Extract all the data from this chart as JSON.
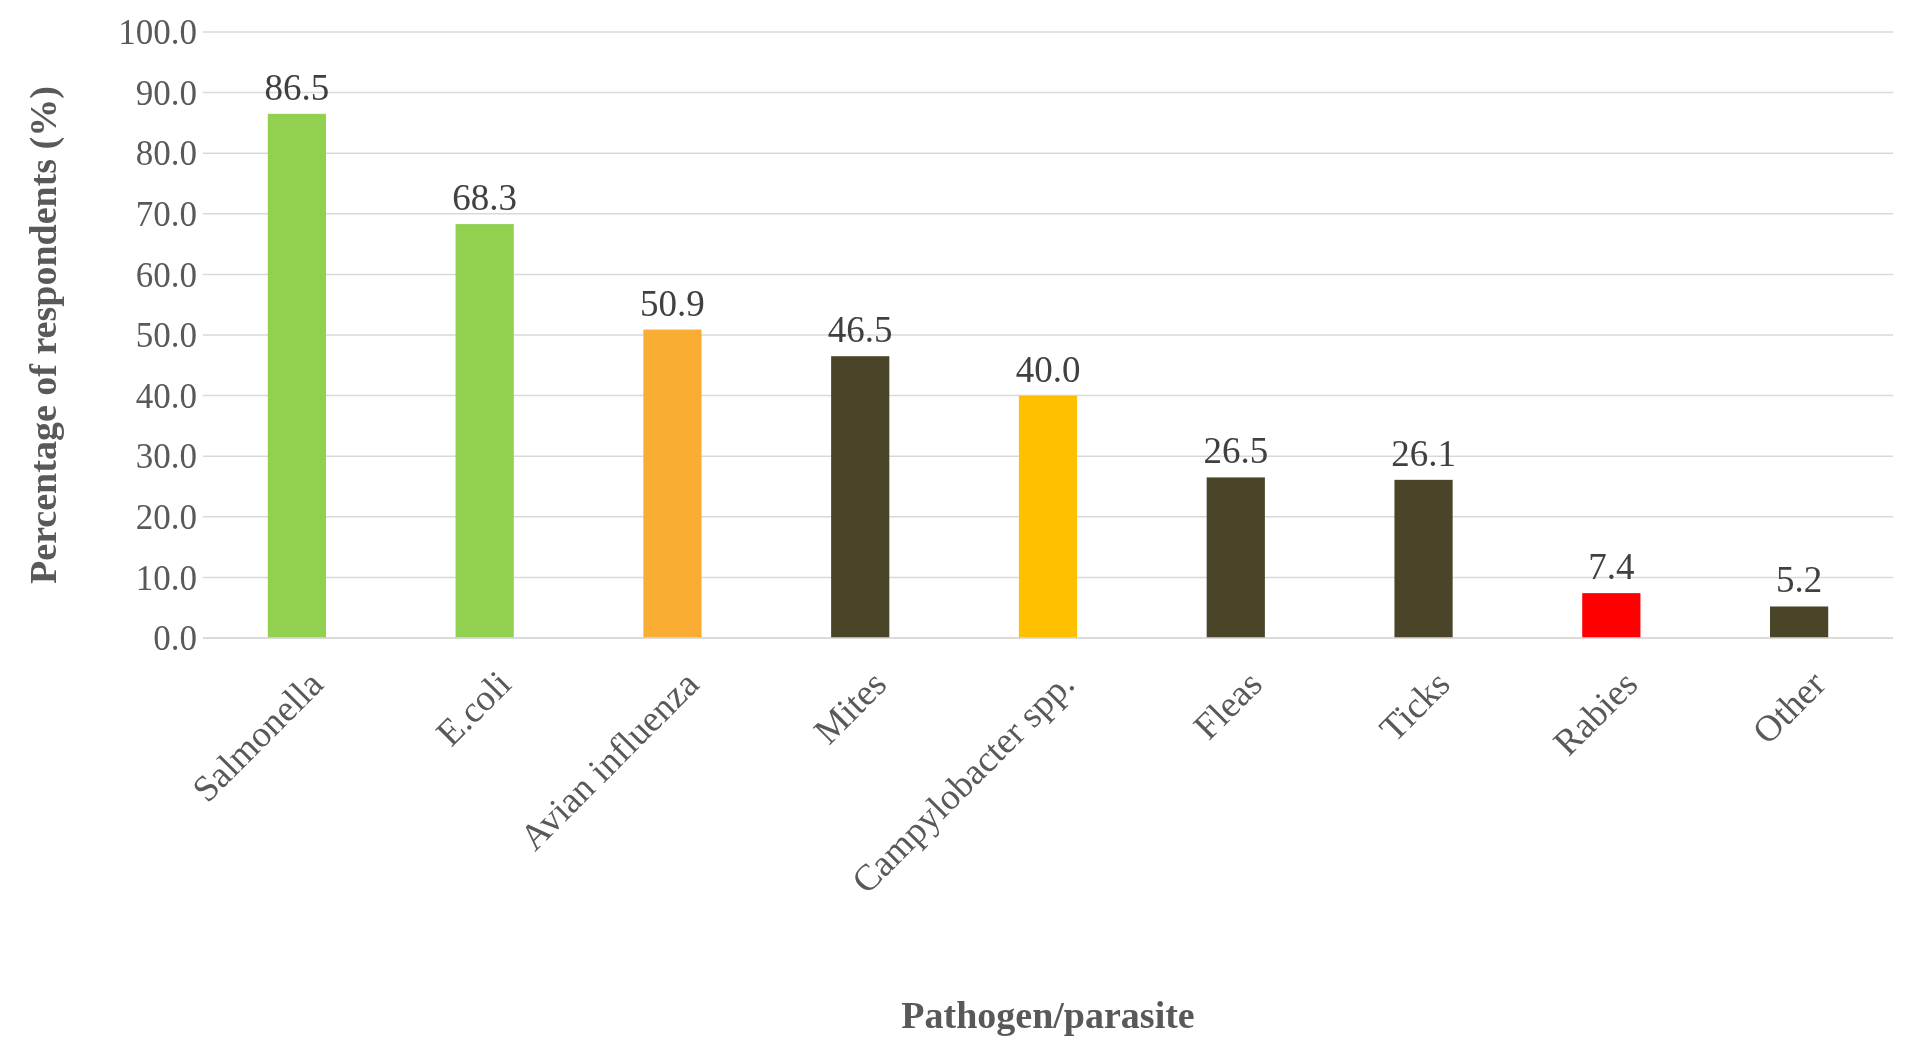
{
  "chart_data": {
    "type": "bar",
    "xlabel": "Pathogen/parasite",
    "ylabel": "Percentage of respondents (%)",
    "categories": [
      "Salmonella",
      "E.coli",
      "Avian influenza",
      "Mites",
      "Campylobacter spp.",
      "Fleas",
      "Ticks",
      "Rabies",
      "Other"
    ],
    "values": [
      86.5,
      68.3,
      50.9,
      46.5,
      40.0,
      26.5,
      26.1,
      7.4,
      5.2
    ],
    "colors": [
      "#92d050",
      "#92d050",
      "#f9ae33",
      "#4a4429",
      "#ffc000",
      "#4a4429",
      "#4a4429",
      "#ff0000",
      "#4a4429"
    ],
    "value_labels": [
      "86.5",
      "68.3",
      "50.9",
      "46.5",
      "40.0",
      "26.5",
      "26.1",
      "7.4",
      "5.2"
    ],
    "ylim": [
      0,
      100
    ],
    "yticks": [
      {
        "value": 0,
        "label": "0.0"
      },
      {
        "value": 10,
        "label": "10.0"
      },
      {
        "value": 20,
        "label": "20.0"
      },
      {
        "value": 30,
        "label": "30.0"
      },
      {
        "value": 40,
        "label": "40.0"
      },
      {
        "value": 50,
        "label": "50.0"
      },
      {
        "value": 60,
        "label": "60.0"
      },
      {
        "value": 70,
        "label": "70.0"
      },
      {
        "value": 80,
        "label": "80.0"
      },
      {
        "value": 90,
        "label": "90.0"
      },
      {
        "value": 100,
        "label": "100.0"
      }
    ],
    "grid": "y"
  }
}
